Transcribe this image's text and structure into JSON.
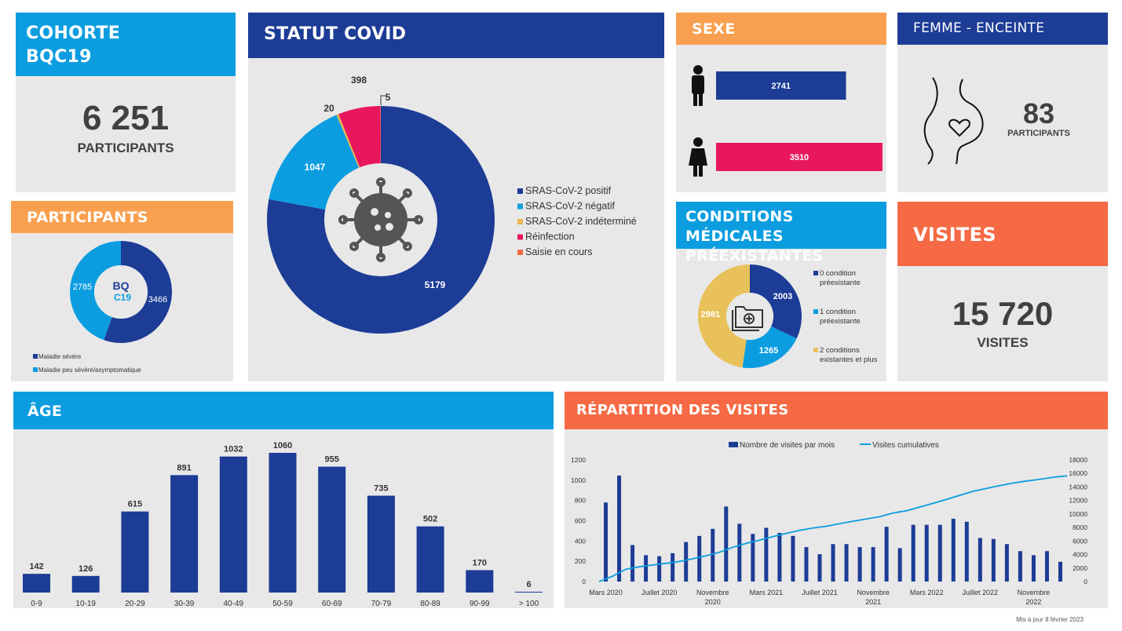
{
  "cohorte": {
    "title_line1": "COHORTE",
    "title_line2": "BQC19",
    "value": "6 251",
    "label": "PARTICIPANTS"
  },
  "participants": {
    "title": "PARTICIPANTS",
    "logo_text_top": "BQ",
    "logo_text_bottom": "C19",
    "chart_data": {
      "type": "pie",
      "labels": [
        "Maladie sévère",
        "Maladie peu sévère/asymptomatique"
      ],
      "values": [
        3466,
        2785
      ],
      "colors": [
        "#1c3c96",
        "#0b9de0"
      ]
    }
  },
  "statut_covid": {
    "title": "STATUT COVID",
    "chart_data": {
      "type": "pie",
      "labels": [
        "SRAS-CoV-2 positif",
        "SRAS-CoV-2 négatif",
        "SRAS-CoV-2 indéterminé",
        "Réinfection",
        "Saisie en cours"
      ],
      "values": [
        5179,
        1047,
        20,
        398,
        5
      ],
      "colors": [
        "#1c3c96",
        "#0b9de0",
        "#e9b84e",
        "#e8175d",
        "#f56a45"
      ]
    }
  },
  "sexe": {
    "title": "SEXE",
    "chart_data": {
      "type": "bar",
      "categories": [
        "Homme",
        "Femme"
      ],
      "values": [
        2741,
        3510
      ],
      "colors": [
        "#1c3c96",
        "#e8175d"
      ],
      "xlim": [
        0,
        4000
      ]
    }
  },
  "femme_enceinte": {
    "title": "FEMME - ENCEINTE",
    "value": "83",
    "label": "PARTICIPANTS"
  },
  "conditions": {
    "title_line1": "CONDITIONS MÉDICALES",
    "title_line2": "PRÉEXISTANTES",
    "chart_data": {
      "type": "pie",
      "labels": [
        "0 condition préexistante",
        "1 condition préexistante",
        "2 conditions existantes et plus"
      ],
      "legend_lines": [
        [
          "0 condition",
          "préexistante"
        ],
        [
          "1 condition",
          "préexistante"
        ],
        [
          "2 conditions",
          "existantes et plus"
        ]
      ],
      "values": [
        2003,
        1265,
        2981
      ],
      "colors": [
        "#1c3c96",
        "#0b9de0",
        "#e9c15a"
      ]
    }
  },
  "visites": {
    "title": "VISITES",
    "value": "15 720",
    "label": "VISITES"
  },
  "age": {
    "title": "ÂGE",
    "chart_data": {
      "type": "bar",
      "categories": [
        "0-9",
        "10-19",
        "20-29",
        "30-39",
        "40-49",
        "50-59",
        "60-69",
        "70-79",
        "80-89",
        "90-99",
        "> 100"
      ],
      "values": [
        142,
        126,
        615,
        891,
        1032,
        1060,
        955,
        735,
        502,
        170,
        6
      ],
      "ylim": [
        0,
        1060
      ],
      "color": "#1c3c96"
    }
  },
  "repartition": {
    "title": "RÉPARTITION DES VISITES",
    "chart_data": {
      "type": "bar",
      "series": [
        {
          "name": "Nombre de visites par mois",
          "type": "bar",
          "axis": "left",
          "color": "#1c3c96",
          "values": [
            780,
            1045,
            360,
            260,
            250,
            280,
            390,
            450,
            520,
            740,
            570,
            470,
            530,
            480,
            450,
            340,
            270,
            370,
            370,
            340,
            340,
            540,
            330,
            560,
            560,
            560,
            620,
            590,
            430,
            420,
            370,
            300,
            260,
            300,
            195
          ]
        },
        {
          "name": "Visites cumulatives",
          "type": "line",
          "axis": "right",
          "color": "#0b9de0",
          "values": [
            0,
            780,
            1825,
            2185,
            2445,
            2695,
            2975,
            3365,
            3815,
            4335,
            5075,
            5645,
            6115,
            6645,
            7125,
            7575,
            7915,
            8185,
            8555,
            8925,
            9265,
            9605,
            10145,
            10475,
            11035,
            11595,
            12155,
            12775,
            13365,
            13795,
            14215,
            14585,
            14885,
            15145,
            15445,
            15640
          ]
        }
      ],
      "x_labels": [
        [
          "Mars 2020"
        ],
        [
          "Juillet 2020"
        ],
        [
          "Novembre",
          "2020"
        ],
        [
          "Mars 2021"
        ],
        [
          "Juillet 2021"
        ],
        [
          "Novembre",
          "2021"
        ],
        [
          "Mars 2022"
        ],
        [
          "Juillet 2022"
        ],
        [
          "Novembre",
          "2022"
        ]
      ],
      "y_left_ticks": [
        "0",
        "200",
        "400",
        "600",
        "800",
        "1000",
        "1200"
      ],
      "y_right_ticks": [
        "0",
        "2000",
        "4000",
        "6000",
        "8000",
        "10000",
        "12000",
        "14000",
        "16000",
        "18000"
      ],
      "ylim_left": [
        0,
        1200
      ],
      "ylim_right": [
        0,
        18000
      ]
    }
  },
  "footer": {
    "updated": "Mis à jour 8 février 2023"
  }
}
